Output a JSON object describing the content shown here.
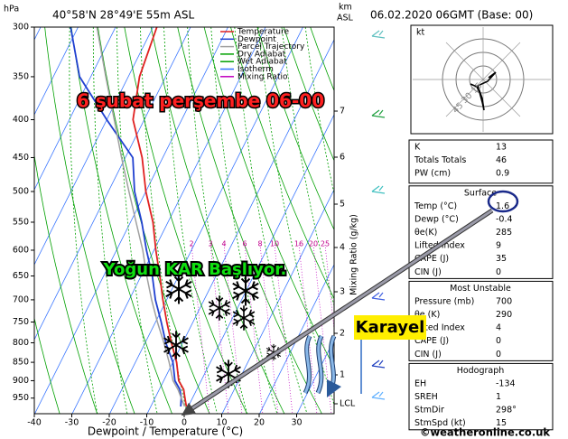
{
  "header": {
    "pressure_unit": "hPa",
    "location": "40°58'N 28°49'E 55m ASL",
    "height_unit_top": "km",
    "height_unit_bottom": "ASL",
    "run": "06.02.2020 06GMT (Base: 00)"
  },
  "chart_data": {
    "type": "skewt",
    "x_label": "Dewpoint / Temperature (°C)",
    "y2_label": "Mixing Ratio (g/kg)",
    "pressure": [
      975,
      950,
      925,
      900,
      850,
      800,
      750,
      700,
      650,
      600,
      550,
      500,
      450,
      400,
      350,
      300
    ],
    "series": [
      {
        "name": "Temperature",
        "color": "#e02020",
        "values": [
          -0.5,
          -2,
          -3.5,
          -6,
          -9,
          -13,
          -17,
          -21,
          -25,
          -29.5,
          -34,
          -40,
          -45.5,
          -53,
          -57,
          -59
        ]
      },
      {
        "name": "Dewpoint",
        "color": "#2040d0",
        "values": [
          -2,
          -3,
          -4.5,
          -7,
          -10,
          -14.5,
          -18.5,
          -23,
          -27,
          -32,
          -37,
          -43,
          -48,
          -60,
          -73,
          -82
        ]
      },
      {
        "name": "Parcel Trajectory",
        "color": "#a0a0a0",
        "values": [
          -1,
          -3,
          -5,
          -7.5,
          -11,
          -15,
          -19.5,
          -24,
          -28.5,
          -33,
          -38.5,
          -44.5,
          -51,
          -58,
          -66,
          -75
        ]
      }
    ],
    "reference_lines": [
      {
        "name": "Dry Adiabat",
        "color": "#00a000"
      },
      {
        "name": "Wet Adiabat",
        "color": "#00a000"
      },
      {
        "name": "Isotherm",
        "color": "#3070ff"
      },
      {
        "name": "Mixing Ratio",
        "color": "#c000c0"
      }
    ],
    "xlim": [
      -40,
      40
    ],
    "xticks": [
      -40,
      -30,
      -20,
      -10,
      0,
      10,
      20,
      30
    ],
    "ylim": [
      300,
      1000
    ],
    "yticks": [
      300,
      350,
      400,
      450,
      500,
      550,
      600,
      650,
      700,
      750,
      800,
      850,
      900,
      950
    ],
    "height_ticks": [
      7,
      6,
      5,
      4,
      3,
      2,
      1,
      "LCL"
    ],
    "mixing_ratio_labels": [
      2,
      3,
      4,
      6,
      8,
      10,
      16,
      20,
      25
    ]
  },
  "hodograph": {
    "unit": "kt",
    "rings": [
      "45",
      "30",
      "15"
    ]
  },
  "indices": [
    {
      "rows": [
        [
          "K",
          13
        ],
        [
          "Totals Totals",
          46
        ],
        [
          "PW (cm)",
          0.9
        ]
      ]
    },
    {
      "title": "Surface",
      "rows": [
        [
          "Temp (°C)",
          1.6
        ],
        [
          "Dewp (°C)",
          -0.4
        ],
        [
          "θe(K)",
          285
        ],
        [
          "Lifted Index",
          9
        ],
        [
          "CAPE (J)",
          35
        ],
        [
          "CIN (J)",
          0
        ]
      ]
    },
    {
      "title": "Most Unstable",
      "rows": [
        [
          "Pressure (mb)",
          700
        ],
        [
          "θe (K)",
          290
        ],
        [
          "Lifted Index",
          4
        ],
        [
          "CAPE (J)",
          0
        ],
        [
          "CIN (J)",
          0
        ]
      ]
    },
    {
      "title": "Hodograph",
      "rows": [
        [
          "EH",
          -134
        ],
        [
          "SREH",
          1
        ],
        [
          "StmDir",
          "298°"
        ],
        [
          "StmSpd (kt)",
          15
        ]
      ]
    }
  ],
  "annotations": {
    "headline": "6 şubat perşembe 06-00",
    "snow": "Yoğun KAR Başlıyor.",
    "wind": "Karayel"
  },
  "credit": "©weatheronline.co.uk"
}
